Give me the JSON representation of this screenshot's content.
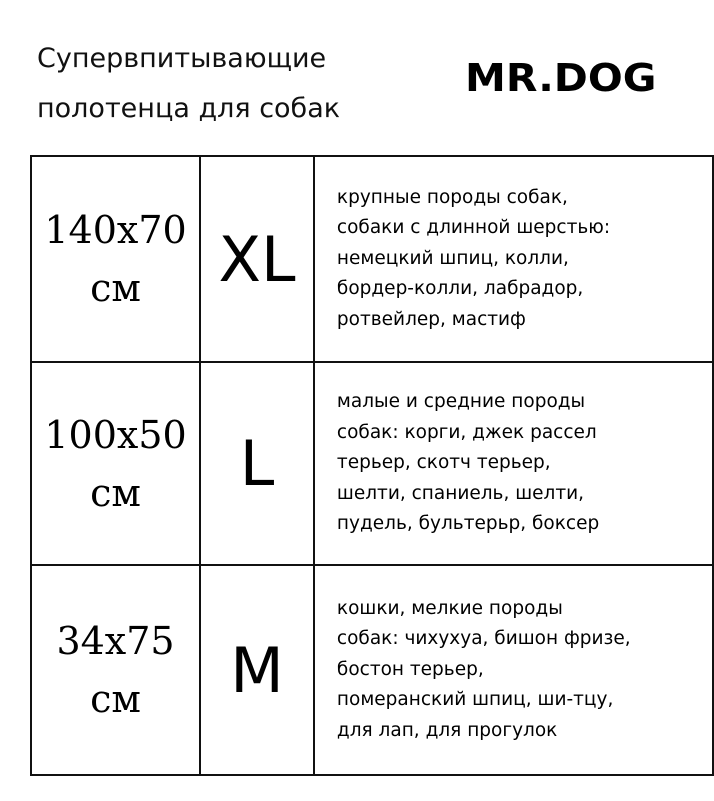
{
  "header": {
    "title_lines": [
      "Супервпитывающие",
      "полотенца для собак"
    ],
    "logo": "MR.DOG"
  },
  "rows": [
    {
      "size_lines": [
        "140x70",
        "см"
      ],
      "label": "XL",
      "description_lines": [
        "крупные породы собак,",
        "собаки с длинной шерстью:",
        "немецкий шпиц, колли,",
        "бордер-колли, лабрадор,",
        "ротвейлер, мастиф"
      ]
    },
    {
      "size_lines": [
        "100x50",
        "см"
      ],
      "label": "L",
      "description_lines": [
        "малые и средние породы",
        "собак: корги, джек рассел",
        "терьер, скотч терьер,",
        "шелти, спаниель, шелти,",
        "пудель, бультерьр, боксер"
      ]
    },
    {
      "size_lines": [
        "34x75",
        "см"
      ],
      "label": "M",
      "description_lines": [
        "кошки, мелкие породы",
        "собак: чихухуа, бишон фризе,",
        "бостон терьер,",
        "померанский шпиц, ши-тцу,",
        "для лап, для прогулок"
      ]
    }
  ]
}
